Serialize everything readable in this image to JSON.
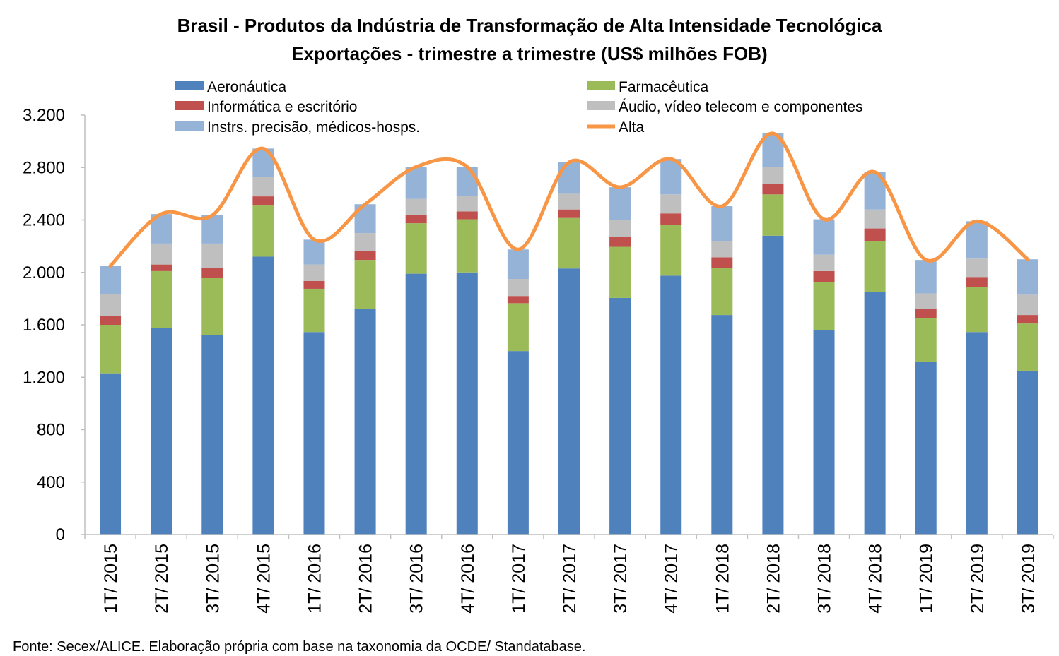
{
  "chart_data": {
    "type": "bar",
    "stacked": true,
    "title": "Brasil - Produtos da Indústria de Transformação de Alta Intensidade Tecnológica",
    "subtitle": "Exportações - trimestre a trimestre (US$ milhões FOB)",
    "xlabel": "",
    "ylabel": "",
    "ylim": [
      0,
      3200
    ],
    "yticks": [
      0,
      400,
      800,
      1200,
      1600,
      2000,
      2400,
      2800,
      3200
    ],
    "ytick_labels": [
      "0",
      "400",
      "800",
      "1.200",
      "1.600",
      "2.000",
      "2.400",
      "2.800",
      "3.200"
    ],
    "grid": false,
    "legend_position": "top",
    "categories": [
      "1T/ 2015",
      "2T/ 2015",
      "3T/ 2015",
      "4T/ 2015",
      "1T/ 2016",
      "2T/ 2016",
      "3T/ 2016",
      "4T/ 2016",
      "1T/ 2017",
      "2T/ 2017",
      "3T/ 2017",
      "4T/ 2017",
      "1T/ 2018",
      "2T/ 2018",
      "3T/ 2018",
      "4T/ 2018",
      "1T/ 2019",
      "2T/ 2019",
      "3T/ 2019"
    ],
    "series": [
      {
        "name": "Aeronáutica",
        "color": "#4f81bd",
        "values": [
          1230,
          1575,
          1520,
          2120,
          1545,
          1720,
          1990,
          2000,
          1400,
          2030,
          1805,
          1975,
          1675,
          2280,
          1560,
          1850,
          1320,
          1545,
          1250
        ]
      },
      {
        "name": "Farmacêutica",
        "color": "#9bbb59",
        "values": [
          370,
          435,
          440,
          390,
          330,
          375,
          385,
          405,
          365,
          385,
          390,
          385,
          360,
          315,
          365,
          390,
          330,
          345,
          360
        ]
      },
      {
        "name": "Informática e escritório",
        "color": "#c0504d",
        "values": [
          65,
          50,
          75,
          70,
          60,
          70,
          65,
          60,
          55,
          65,
          75,
          90,
          80,
          80,
          85,
          95,
          70,
          75,
          65
        ]
      },
      {
        "name": "Áudio, vídeo telecom e componentes",
        "color": "#bfbfbf",
        "values": [
          170,
          160,
          185,
          150,
          125,
          135,
          120,
          120,
          130,
          120,
          130,
          145,
          125,
          130,
          125,
          145,
          120,
          140,
          155
        ]
      },
      {
        "name": "Instrs. precisão, médicos-hosps.",
        "color": "#95b3d7",
        "values": [
          215,
          225,
          215,
          215,
          190,
          220,
          245,
          220,
          225,
          240,
          250,
          270,
          265,
          255,
          270,
          285,
          255,
          285,
          270
        ]
      }
    ],
    "line_series": {
      "name": "Alta",
      "color": "#f79646",
      "values": [
        2050,
        2445,
        2435,
        2945,
        2250,
        2520,
        2805,
        2805,
        2175,
        2840,
        2650,
        2865,
        2505,
        3060,
        2405,
        2765,
        2095,
        2390,
        2100
      ]
    },
    "source": "Fonte: Secex/ALICE. Elaboração própria com base na taxonomia da OCDE/ Standatabase."
  }
}
